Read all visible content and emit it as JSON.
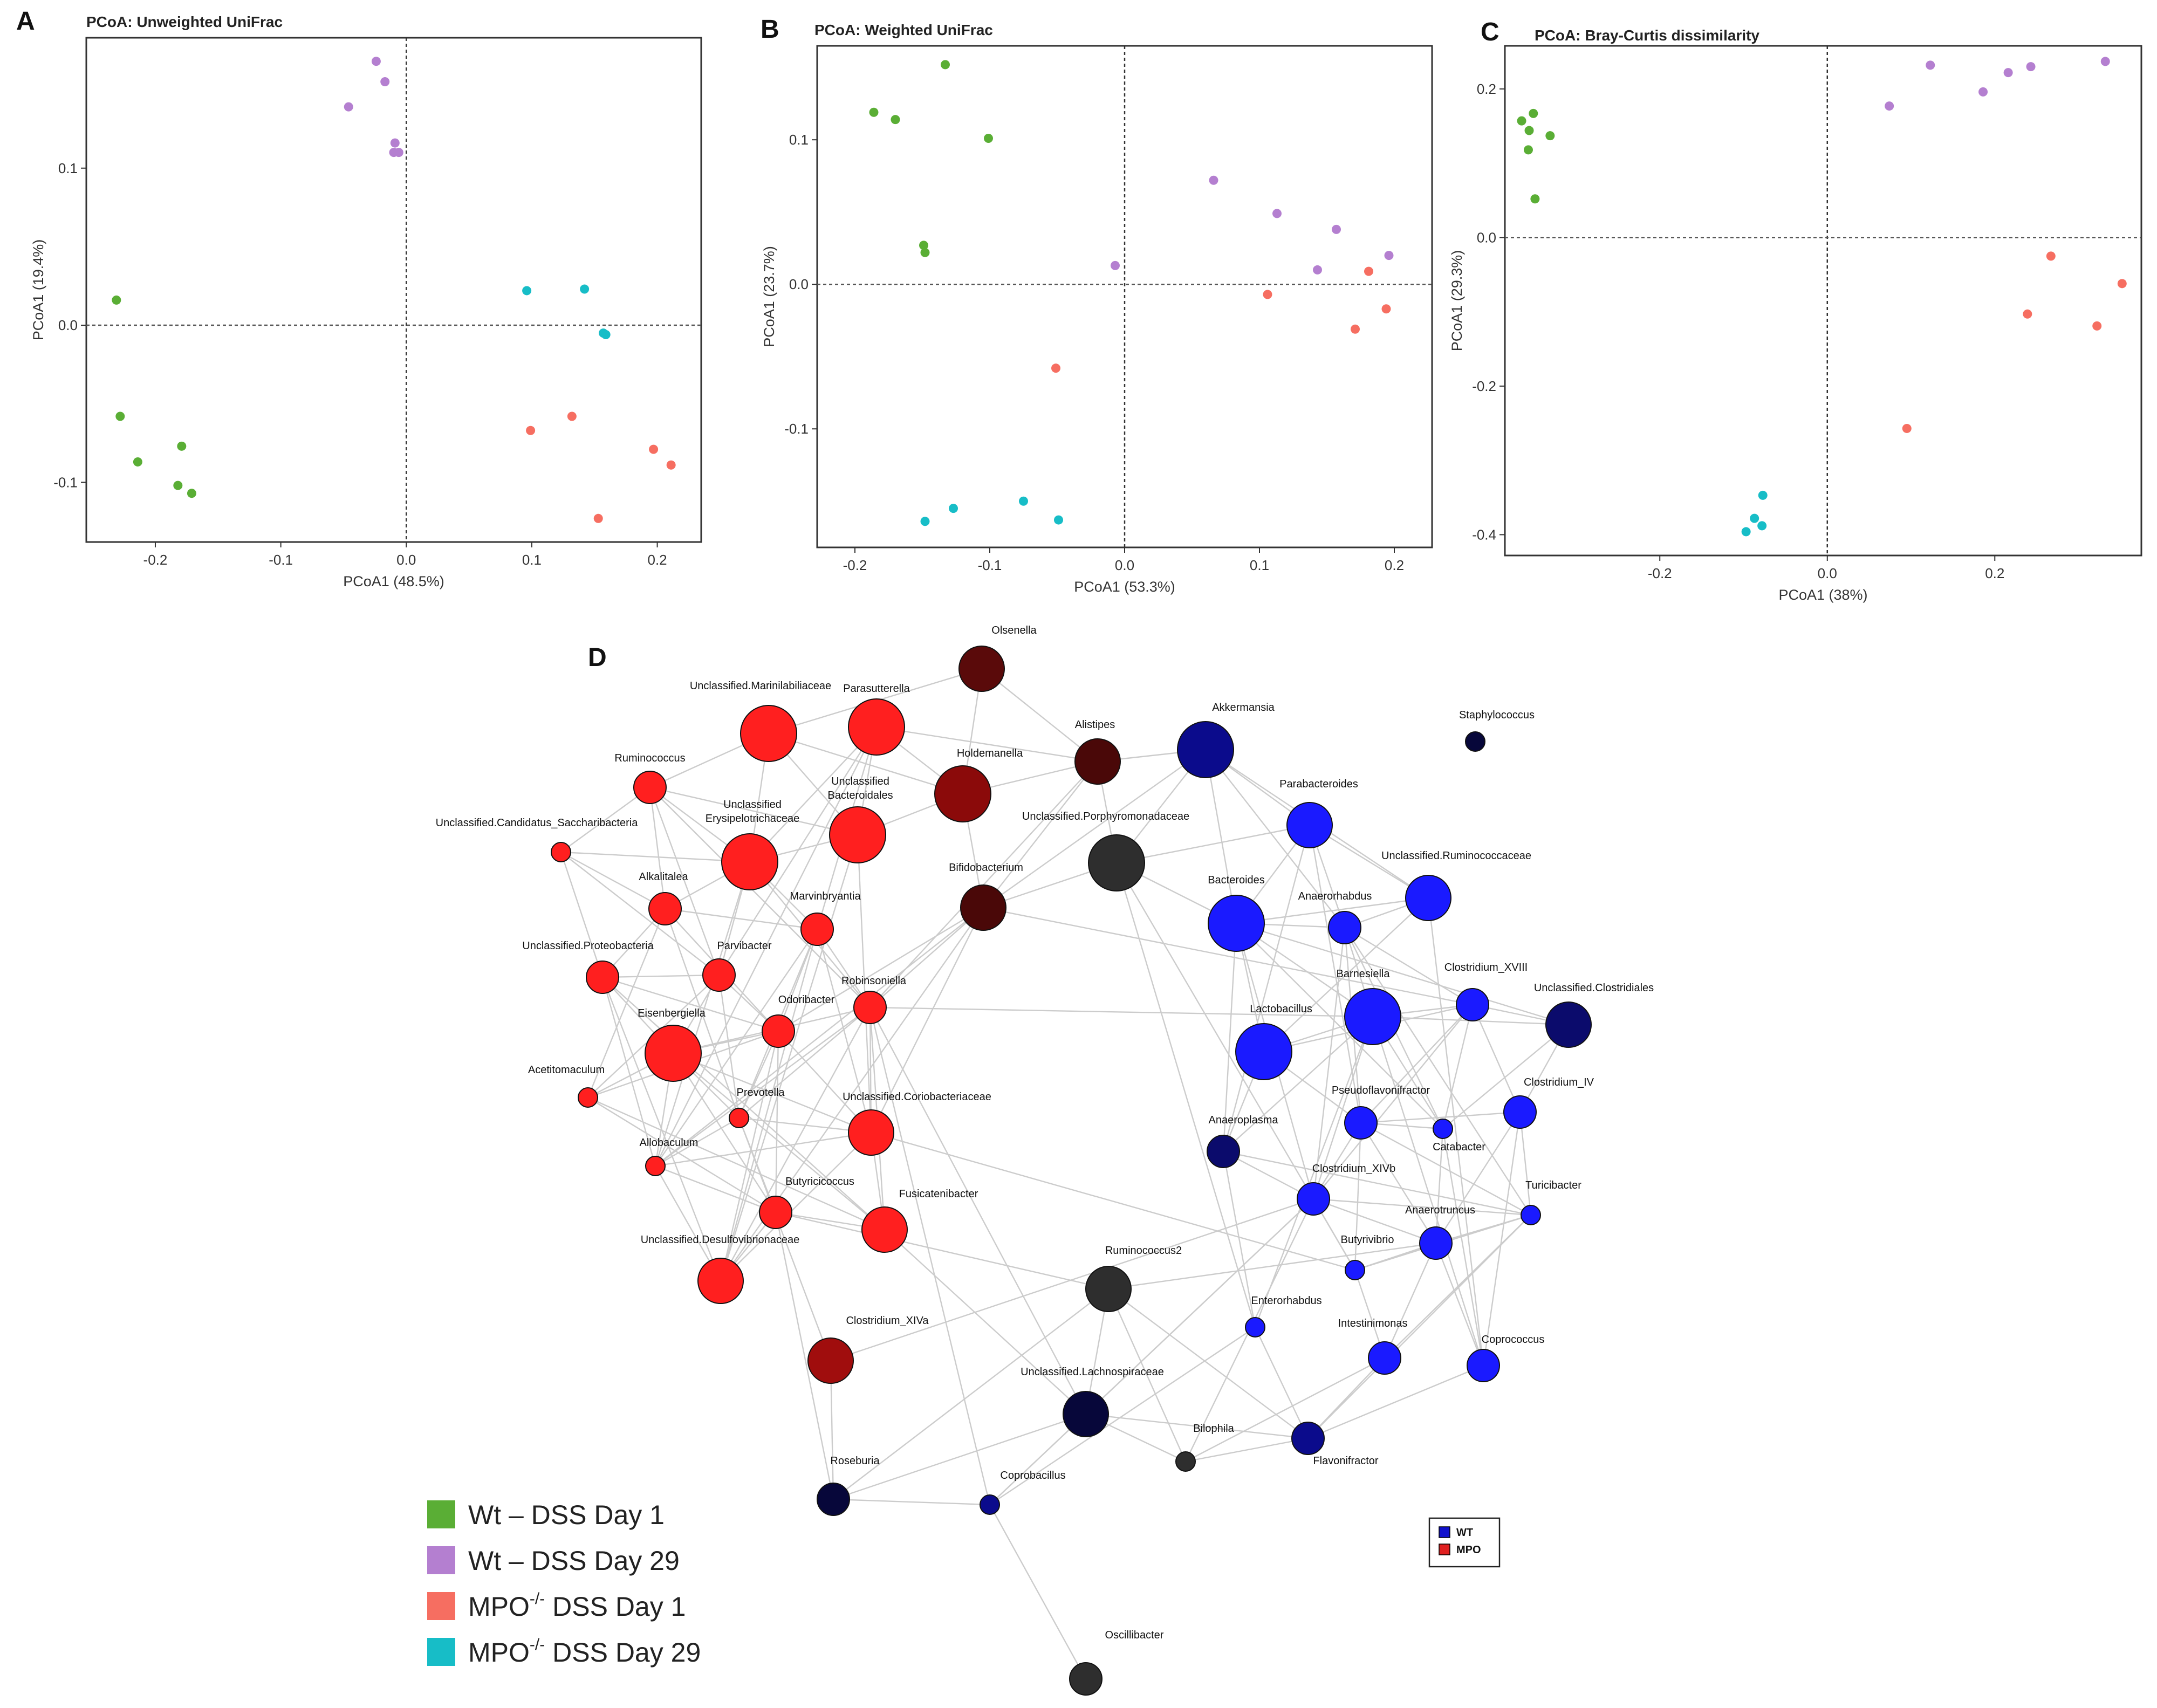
{
  "colors": {
    "wt_day1": "#5aae35",
    "wt_day29": "#b47fd0",
    "mpo_day1": "#f66e61",
    "mpo_day29": "#17bdc7",
    "edge": "#cccccc"
  },
  "chart_data": [
    {
      "type": "scatter",
      "panel": "A",
      "title": "PCoA: Unweighted UniFrac",
      "xlabel": "PCoA1 (48.5%)",
      "ylabel": "PCoA1 (19.4%)",
      "xlim": [
        -0.255,
        0.235
      ],
      "ylim": [
        -0.138,
        0.183
      ],
      "xticks": [
        -0.2,
        -0.1,
        0.0,
        0.1,
        0.2
      ],
      "xtick_labels": [
        "-0.2",
        "-0.1",
        "0.0",
        "0.1",
        "0.2"
      ],
      "yticks": [
        -0.1,
        0.0,
        0.1
      ],
      "ytick_labels": [
        "-0.1",
        "0.0",
        "0.1"
      ],
      "series": [
        {
          "name": "Wt – DSS Day 1",
          "color_key": "wt_day1",
          "points": [
            [
              -0.231,
              0.016
            ],
            [
              -0.228,
              -0.058
            ],
            [
              -0.214,
              -0.087
            ],
            [
              -0.179,
              -0.077
            ],
            [
              -0.182,
              -0.102
            ],
            [
              -0.171,
              -0.107
            ]
          ]
        },
        {
          "name": "Wt – DSS Day 29",
          "color_key": "wt_day29",
          "points": [
            [
              -0.024,
              0.168
            ],
            [
              -0.017,
              0.155
            ],
            [
              -0.046,
              0.139
            ],
            [
              -0.009,
              0.116
            ],
            [
              -0.01,
              0.11
            ],
            [
              -0.006,
              0.11
            ]
          ]
        },
        {
          "name": "MPO-/- DSS Day 1",
          "color_key": "mpo_day1",
          "points": [
            [
              0.132,
              -0.058
            ],
            [
              0.099,
              -0.067
            ],
            [
              0.197,
              -0.079
            ],
            [
              0.211,
              -0.089
            ],
            [
              0.153,
              -0.123
            ]
          ]
        },
        {
          "name": "MPO-/- DSS Day 29",
          "color_key": "mpo_day29",
          "points": [
            [
              0.096,
              0.022
            ],
            [
              0.142,
              0.023
            ],
            [
              0.157,
              -0.005
            ],
            [
              0.159,
              -0.006
            ]
          ]
        }
      ]
    },
    {
      "type": "scatter",
      "panel": "B",
      "title": "PCoA: Weighted UniFrac",
      "xlabel": "PCoA1 (53.3%)",
      "ylabel": "PCoA1 (23.7%)",
      "xlim": [
        -0.228,
        0.228
      ],
      "ylim": [
        -0.182,
        0.165
      ],
      "xticks": [
        -0.2,
        -0.1,
        0.0,
        0.1,
        0.2
      ],
      "xtick_labels": [
        "-0.2",
        "-0.1",
        "0.0",
        "0.1",
        "0.2"
      ],
      "yticks": [
        -0.1,
        0.0,
        0.1
      ],
      "ytick_labels": [
        "-0.1",
        "0.0",
        "0.1"
      ],
      "series": [
        {
          "name": "Wt – DSS Day 1",
          "color_key": "wt_day1",
          "points": [
            [
              -0.133,
              0.152
            ],
            [
              -0.186,
              0.119
            ],
            [
              -0.17,
              0.114
            ],
            [
              -0.101,
              0.101
            ],
            [
              -0.149,
              0.027
            ],
            [
              -0.148,
              0.022
            ]
          ]
        },
        {
          "name": "Wt – DSS Day 29",
          "color_key": "wt_day29",
          "points": [
            [
              0.066,
              0.072
            ],
            [
              0.113,
              0.049
            ],
            [
              0.157,
              0.038
            ],
            [
              -0.007,
              0.013
            ],
            [
              0.143,
              0.01
            ],
            [
              0.196,
              0.02
            ]
          ]
        },
        {
          "name": "MPO-/- DSS Day 1",
          "color_key": "mpo_day1",
          "points": [
            [
              0.181,
              0.009
            ],
            [
              0.106,
              -0.007
            ],
            [
              0.194,
              -0.017
            ],
            [
              0.171,
              -0.031
            ],
            [
              -0.051,
              -0.058
            ]
          ]
        },
        {
          "name": "MPO-/- DSS Day 29",
          "color_key": "mpo_day29",
          "points": [
            [
              -0.127,
              -0.155
            ],
            [
              -0.075,
              -0.15
            ],
            [
              -0.148,
              -0.164
            ],
            [
              -0.049,
              -0.163
            ]
          ]
        }
      ]
    },
    {
      "type": "scatter",
      "panel": "C",
      "title": "PCoA: Bray-Curtis dissimilarity",
      "xlabel": "PCoA1 (38%)",
      "ylabel": "PCoA1 (29.3%)",
      "xlim": [
        -0.385,
        0.375
      ],
      "ylim": [
        -0.428,
        0.258
      ],
      "xticks": [
        -0.2,
        0.0,
        0.2
      ],
      "xtick_labels": [
        "-0.2",
        "0.0",
        "0.2"
      ],
      "yticks": [
        -0.4,
        -0.2,
        0.0,
        0.2
      ],
      "ytick_labels": [
        "-0.4",
        "-0.2",
        "0.0",
        "0.2"
      ],
      "series": [
        {
          "name": "Wt – DSS Day 1",
          "color_key": "wt_day1",
          "points": [
            [
              -0.351,
              0.167
            ],
            [
              -0.365,
              0.157
            ],
            [
              -0.356,
              0.144
            ],
            [
              -0.331,
              0.137
            ],
            [
              -0.357,
              0.118
            ],
            [
              -0.349,
              0.052
            ]
          ]
        },
        {
          "name": "Wt – DSS Day 29",
          "color_key": "wt_day29",
          "points": [
            [
              0.123,
              0.232
            ],
            [
              0.332,
              0.237
            ],
            [
              0.216,
              0.222
            ],
            [
              0.243,
              0.23
            ],
            [
              0.186,
              0.196
            ],
            [
              0.074,
              0.177
            ]
          ]
        },
        {
          "name": "MPO-/- DSS Day 1",
          "color_key": "mpo_day1",
          "points": [
            [
              0.267,
              -0.025
            ],
            [
              0.352,
              -0.062
            ],
            [
              0.239,
              -0.103
            ],
            [
              0.322,
              -0.119
            ],
            [
              0.095,
              -0.257
            ]
          ]
        },
        {
          "name": "MPO-/- DSS Day 29",
          "color_key": "mpo_day29",
          "points": [
            [
              -0.077,
              -0.347
            ],
            [
              -0.087,
              -0.378
            ],
            [
              -0.078,
              -0.388
            ],
            [
              -0.097,
              -0.396
            ]
          ]
        }
      ]
    },
    {
      "type": "network",
      "panel": "D",
      "group_legend": [
        {
          "label": "WT",
          "color": "#1111cc"
        },
        {
          "label": "MPO",
          "color": "#e02020"
        }
      ],
      "nodes": [
        {
          "name": "Olsenella",
          "color": "#5a0a0a",
          "size": 3
        },
        {
          "name": "Unclassified.Marinilabiliaceae",
          "color": "#ff1f1f",
          "size": 4
        },
        {
          "name": "Parasutterella",
          "color": "#ff1f1f",
          "size": 4
        },
        {
          "name": "Alistipes",
          "color": "#4a0808",
          "size": 3
        },
        {
          "name": "Akkermansia",
          "color": "#0b0b8c",
          "size": 4
        },
        {
          "name": "Staphylococcus",
          "color": "#07073a",
          "size": 1
        },
        {
          "name": "Ruminococcus",
          "color": "#ff1f1f",
          "size": 2
        },
        {
          "name": "Holdemanella",
          "color": "#8b0a0a",
          "size": 4
        },
        {
          "name": "Unclassified Bacteroidales",
          "color": "#ff1f1f",
          "size": 4
        },
        {
          "name": "Unclassified.Porphyromonadaceae",
          "color": "#2e2e2e",
          "size": 4
        },
        {
          "name": "Parabacteroides",
          "color": "#1a1aff",
          "size": 3
        },
        {
          "name": "Unclassified.Candidatus_Saccharibacteria",
          "color": "#ff1f1f",
          "size": 1
        },
        {
          "name": "Unclassified Erysipelotrichaceae",
          "color": "#ff1f1f",
          "size": 4
        },
        {
          "name": "Bifidobacterium",
          "color": "#4a0808",
          "size": 3
        },
        {
          "name": "Unclassified.Ruminococcaceae",
          "color": "#1a1aff",
          "size": 3
        },
        {
          "name": "Alkalitalea",
          "color": "#ff1f1f",
          "size": 2
        },
        {
          "name": "Marvinbryantia",
          "color": "#ff1f1f",
          "size": 2
        },
        {
          "name": "Bacteroides",
          "color": "#1a1aff",
          "size": 4
        },
        {
          "name": "Anaerorhabdus",
          "color": "#1a1aff",
          "size": 2
        },
        {
          "name": "Unclassified.Proteobacteria",
          "color": "#ff1f1f",
          "size": 2
        },
        {
          "name": "Parvibacter",
          "color": "#ff1f1f",
          "size": 2
        },
        {
          "name": "Robinsoniella",
          "color": "#ff1f1f",
          "size": 2
        },
        {
          "name": "Barnesiella",
          "color": "#1a1aff",
          "size": 4
        },
        {
          "name": "Clostridium_XVIII",
          "color": "#1a1aff",
          "size": 2
        },
        {
          "name": "Unclassified.Clostridiales",
          "color": "#0b0b6c",
          "size": 3
        },
        {
          "name": "Odoribacter",
          "color": "#ff1f1f",
          "size": 2
        },
        {
          "name": "Lactobacillus",
          "color": "#1a1aff",
          "size": 4
        },
        {
          "name": "Eisenbergiella",
          "color": "#ff1f1f",
          "size": 4
        },
        {
          "name": "Acetitomaculum",
          "color": "#ff1f1f",
          "size": 1
        },
        {
          "name": "Prevotella",
          "color": "#ff1f1f",
          "size": 1
        },
        {
          "name": "Unclassified.Coriobacteriaceae",
          "color": "#ff1f1f",
          "size": 3
        },
        {
          "name": "Pseudoflavonifractor",
          "color": "#1a1aff",
          "size": 2
        },
        {
          "name": "Clostridium_IV",
          "color": "#1a1aff",
          "size": 2
        },
        {
          "name": "Anaeroplasma",
          "color": "#0b0b6c",
          "size": 2
        },
        {
          "name": "Catabacter",
          "color": "#1a1aff",
          "size": 1
        },
        {
          "name": "Allobaculum",
          "color": "#ff1f1f",
          "size": 1
        },
        {
          "name": "Clostridium_XIVb",
          "color": "#1a1aff",
          "size": 2
        },
        {
          "name": "Butyricicoccus",
          "color": "#ff1f1f",
          "size": 2
        },
        {
          "name": "Fusicatenibacter",
          "color": "#ff1f1f",
          "size": 3
        },
        {
          "name": "Turicibacter",
          "color": "#1a1aff",
          "size": 1
        },
        {
          "name": "Anaerotruncus",
          "color": "#1a1aff",
          "size": 2
        },
        {
          "name": "Butyrivibrio",
          "color": "#1a1aff",
          "size": 1
        },
        {
          "name": "Unclassified.Desulfovibrionaceae",
          "color": "#ff1f1f",
          "size": 3
        },
        {
          "name": "Ruminococcus2",
          "color": "#2e2e2e",
          "size": 3
        },
        {
          "name": "Enterorhabdus",
          "color": "#1a1aff",
          "size": 1
        },
        {
          "name": "Clostridium_XIVa",
          "color": "#a00d0d",
          "size": 3
        },
        {
          "name": "Intestinimonas",
          "color": "#1a1aff",
          "size": 2
        },
        {
          "name": "Coprococcus",
          "color": "#1a1aff",
          "size": 2
        },
        {
          "name": "Unclassified.Lachnospiraceae",
          "color": "#07073a",
          "size": 3
        },
        {
          "name": "Bilophila",
          "color": "#2e2e2e",
          "size": 1
        },
        {
          "name": "Flavonifractor",
          "color": "#0b0b8c",
          "size": 2
        },
        {
          "name": "Roseburia",
          "color": "#07073a",
          "size": 2
        },
        {
          "name": "Coprobacillus",
          "color": "#0b0b8c",
          "size": 1
        },
        {
          "name": "Oscillibacter",
          "color": "#2e2e2e",
          "size": 2
        }
      ]
    }
  ],
  "legend": {
    "items": [
      {
        "main": "Wt – DSS Day 1",
        "color_key": "wt_day1"
      },
      {
        "main": "Wt – DSS Day 29",
        "color_key": "wt_day29"
      },
      {
        "main": "MPO",
        "sup": "-/-",
        "rest": " DSS Day 1",
        "color_key": "mpo_day1"
      },
      {
        "main": "MPO",
        "sup": "-/-",
        "rest": " DSS Day 29",
        "color_key": "mpo_day29"
      }
    ]
  }
}
